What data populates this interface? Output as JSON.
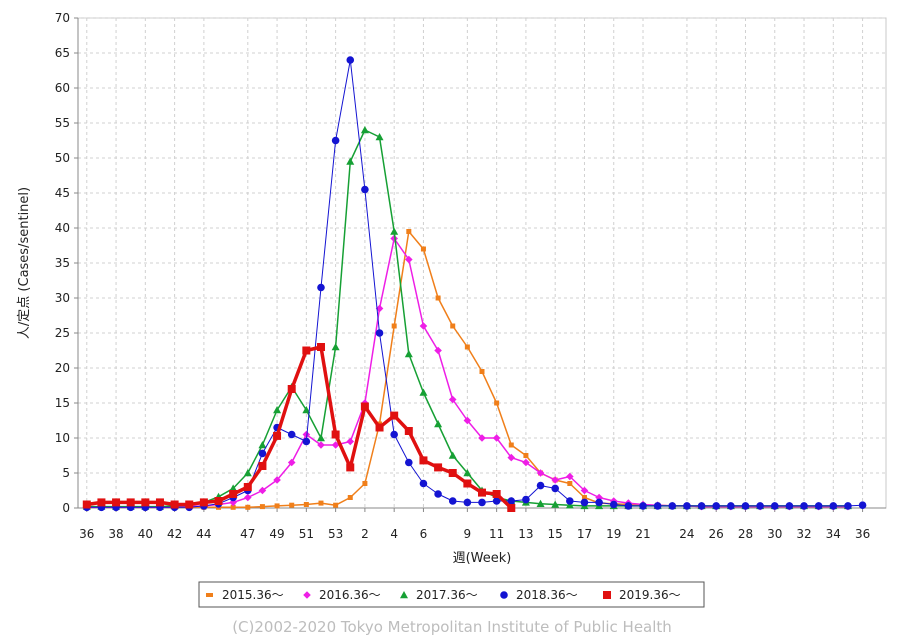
{
  "chart_data": {
    "type": "line",
    "ylabel": "人/定点 (Cases/sentinel)",
    "xlabel": "週(Week)",
    "ylim": [
      0,
      70
    ],
    "y_ticks": [
      0,
      5,
      10,
      15,
      20,
      25,
      30,
      35,
      40,
      45,
      50,
      55,
      60,
      65,
      70
    ],
    "x_tick_labels": [
      "36",
      "38",
      "40",
      "42",
      "44",
      "47",
      "49",
      "51",
      "53",
      "2",
      "4",
      "6",
      "9",
      "11",
      "13",
      "15",
      "17",
      "19",
      "21",
      "24",
      "26",
      "28",
      "30",
      "32",
      "34",
      "36"
    ],
    "x_ticks": [
      0,
      2,
      4,
      6,
      8,
      11,
      13,
      15,
      17,
      19,
      21,
      23,
      26,
      28,
      30,
      32,
      34,
      36,
      38,
      41,
      43,
      45,
      47,
      49,
      51,
      53
    ],
    "grid": true,
    "legend_position": "bottom",
    "series": [
      {
        "name": "2015.36～",
        "color": "#f07f1a",
        "marker": "square",
        "line_width": 1.5,
        "x": [
          0,
          1,
          2,
          3,
          4,
          5,
          6,
          7,
          8,
          9,
          10,
          11,
          12,
          13,
          14,
          15,
          16,
          17,
          18,
          19,
          20,
          21,
          22,
          23,
          24,
          25,
          26,
          27,
          28,
          29,
          30,
          31,
          32,
          33,
          34,
          35,
          36,
          37,
          38,
          39,
          40,
          41,
          42,
          43,
          44,
          45,
          46,
          47,
          48,
          49,
          50,
          51,
          52
        ],
        "values": [
          0.1,
          0.1,
          0.1,
          0.1,
          0.1,
          0.1,
          0.1,
          0.1,
          0.1,
          0.1,
          0.1,
          0.1,
          0.2,
          0.3,
          0.4,
          0.5,
          0.7,
          0.4,
          1.5,
          3.5,
          12,
          26,
          39.5,
          37,
          30,
          26,
          23,
          19.5,
          15,
          9,
          7.5,
          5,
          4,
          3.5,
          1.5,
          0.7,
          0.6,
          0.5,
          0.4,
          0.4,
          0.3,
          0.3,
          0.2,
          0.2,
          0.2,
          0.2,
          0.2,
          0.2,
          0.2,
          0.2,
          0.2,
          0.2,
          0.2
        ]
      },
      {
        "name": "2016.36～",
        "color": "#ee1ee6",
        "marker": "diamond",
        "line_width": 1.5,
        "x": [
          0,
          1,
          2,
          3,
          4,
          5,
          6,
          7,
          8,
          9,
          10,
          11,
          12,
          13,
          14,
          15,
          16,
          17,
          18,
          19,
          20,
          21,
          22,
          23,
          24,
          25,
          26,
          27,
          28,
          29,
          30,
          31,
          32,
          33,
          34,
          35,
          36,
          37,
          38,
          39,
          40,
          41,
          42,
          43,
          44,
          45,
          46,
          47,
          48,
          49,
          50,
          51,
          52
        ],
        "values": [
          0.1,
          0.1,
          0.1,
          0.1,
          0.1,
          0.1,
          0.1,
          0.2,
          0.3,
          0.5,
          0.8,
          1.5,
          2.5,
          4,
          6.5,
          10.5,
          9,
          9,
          9.5,
          15,
          28.5,
          38.5,
          35.5,
          26,
          22.5,
          15.5,
          12.5,
          10,
          10,
          7.2,
          6.5,
          5,
          4,
          4.5,
          2.5,
          1.5,
          1,
          0.7,
          0.5,
          0.4,
          0.3,
          0.3,
          0.2,
          0.2,
          0.2,
          0.2,
          0.2,
          0.2,
          0.2,
          0.2,
          0.2,
          0.2,
          0.2
        ]
      },
      {
        "name": "2017.36～",
        "color": "#16a034",
        "marker": "triangle",
        "line_width": 1.5,
        "x": [
          0,
          1,
          2,
          3,
          4,
          5,
          6,
          7,
          8,
          9,
          10,
          11,
          12,
          13,
          14,
          15,
          16,
          17,
          18,
          19,
          20,
          21,
          22,
          23,
          24,
          25,
          26,
          27,
          28,
          29,
          30,
          31,
          32,
          33,
          34,
          35,
          36,
          37,
          38,
          39,
          40,
          41,
          42,
          43,
          44,
          45,
          46,
          47,
          48,
          49,
          50,
          51,
          52
        ],
        "values": [
          0.2,
          0.2,
          0.2,
          0.2,
          0.2,
          0.2,
          0.3,
          0.4,
          0.8,
          1.6,
          2.8,
          5,
          9,
          14,
          17.3,
          14,
          10,
          23,
          49.5,
          54,
          53,
          39.5,
          22,
          16.5,
          12,
          7.5,
          5,
          2.5,
          1.5,
          1,
          0.8,
          0.6,
          0.5,
          0.4,
          0.3,
          0.3,
          0.3,
          0.3,
          0.3,
          0.3,
          0.3,
          0.3,
          0.3,
          0.3,
          0.3,
          0.3,
          0.3,
          0.3,
          0.3,
          0.3,
          0.3,
          0.3,
          0.3
        ]
      },
      {
        "name": "2018.36～",
        "color": "#1414d2",
        "marker": "circle",
        "line_width": 1,
        "x": [
          0,
          1,
          2,
          3,
          4,
          5,
          6,
          7,
          8,
          9,
          10,
          11,
          12,
          13,
          14,
          15,
          16,
          17,
          18,
          19,
          20,
          21,
          22,
          23,
          24,
          25,
          26,
          27,
          28,
          29,
          30,
          31,
          32,
          33,
          34,
          35,
          36,
          37,
          38,
          39,
          40,
          41,
          42,
          43,
          44,
          45,
          46,
          47,
          48,
          49,
          50,
          51,
          52,
          53
        ],
        "values": [
          0.1,
          0.1,
          0.1,
          0.1,
          0.1,
          0.1,
          0.1,
          0.1,
          0.3,
          0.6,
          1.5,
          2.5,
          7.8,
          11.5,
          10.5,
          9.5,
          31.5,
          52.5,
          64,
          45.5,
          25,
          10.5,
          6.5,
          3.5,
          2,
          1,
          0.8,
          0.8,
          1,
          1,
          1.2,
          3.2,
          2.8,
          1,
          0.8,
          0.8,
          0.5,
          0.3,
          0.3,
          0.3,
          0.3,
          0.3,
          0.3,
          0.3,
          0.3,
          0.3,
          0.3,
          0.3,
          0.3,
          0.3,
          0.3,
          0.3,
          0.3,
          0.4
        ]
      },
      {
        "name": "2019.36～",
        "color": "#e01010",
        "marker": "square",
        "line_width": 3.5,
        "x": [
          0,
          1,
          2,
          3,
          4,
          5,
          6,
          7,
          8,
          9,
          10,
          11,
          12,
          13,
          14,
          15,
          16,
          17,
          18,
          19,
          20,
          21,
          22,
          23,
          24,
          25,
          26,
          27,
          28,
          29
        ],
        "values": [
          0.5,
          0.8,
          0.8,
          0.8,
          0.8,
          0.8,
          0.5,
          0.5,
          0.8,
          1,
          2,
          3,
          6,
          10.3,
          17,
          22.5,
          23,
          10.5,
          5.8,
          14.5,
          11.5,
          13.2,
          11,
          6.8,
          5.8,
          5,
          3.5,
          2.2,
          2,
          0
        ]
      }
    ]
  },
  "copyright": "(C)2002-2020 Tokyo Metropolitan Institute of Public Health"
}
